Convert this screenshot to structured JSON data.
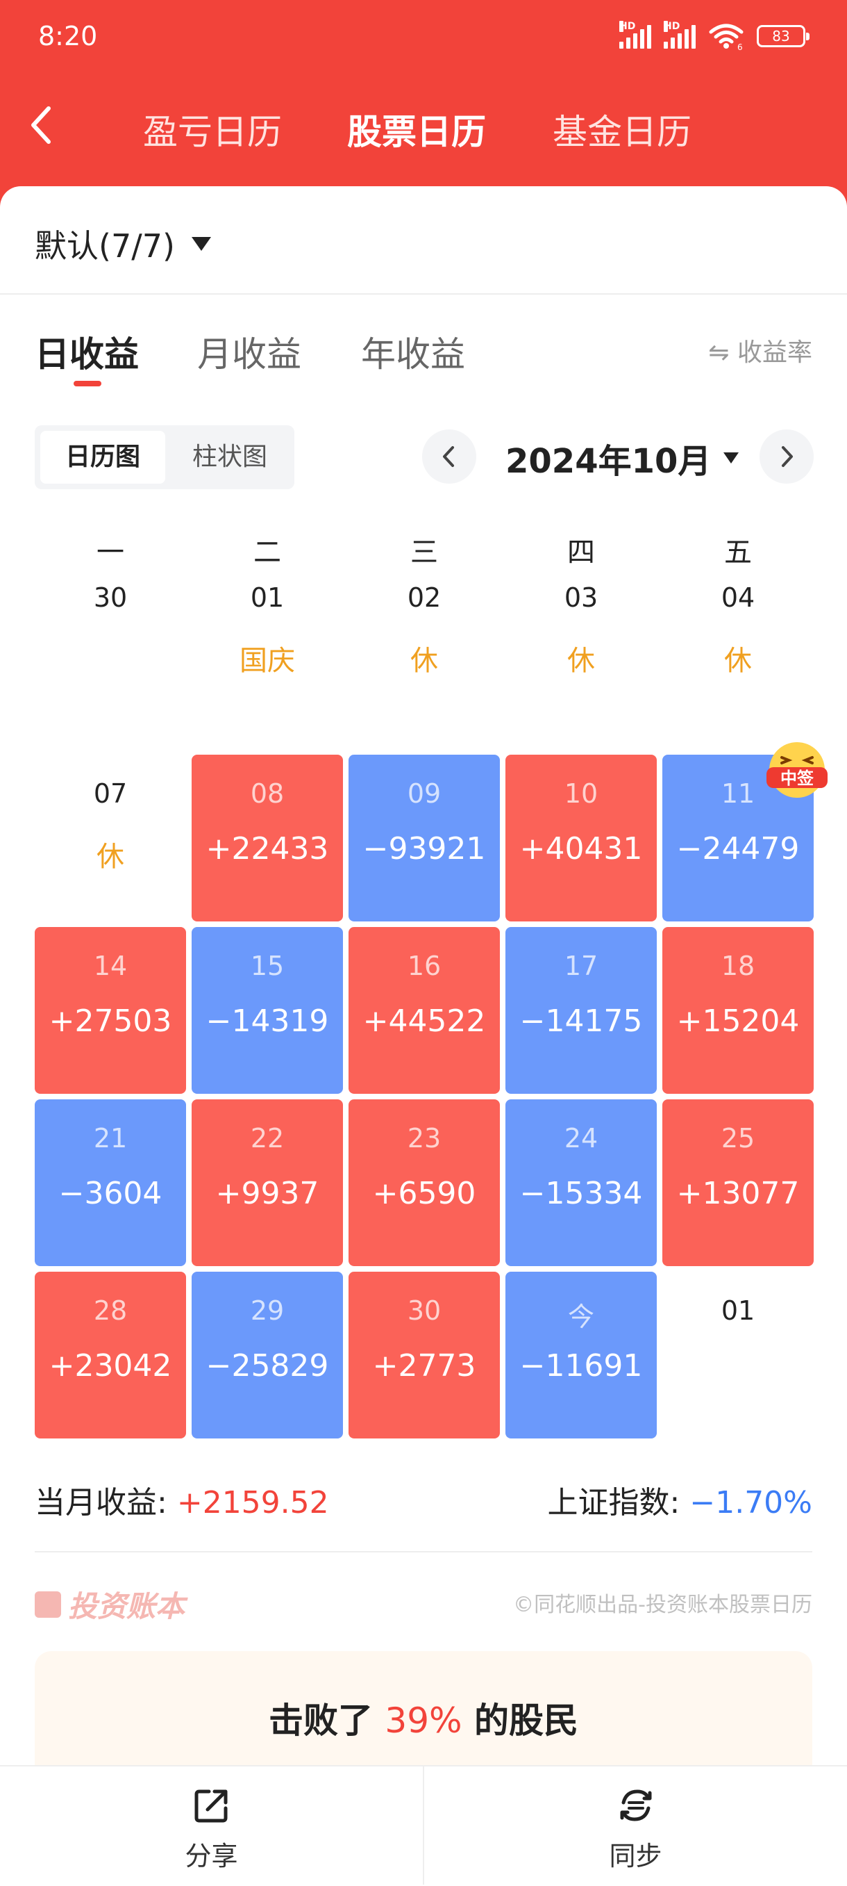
{
  "status_bar": {
    "time": "8:20",
    "hd1": "HD",
    "hd2": "HD",
    "wifi_badge": "6",
    "battery": "83"
  },
  "header": {
    "back_icon": "chevron-left-icon",
    "tabs": [
      {
        "label": "盈亏日历",
        "active": false
      },
      {
        "label": "股票日历",
        "active": true
      },
      {
        "label": "基金日历",
        "active": false
      }
    ]
  },
  "account": {
    "label": "默认(7/7)"
  },
  "period_tabs": [
    {
      "label": "日收益",
      "active": true
    },
    {
      "label": "月收益",
      "active": false
    },
    {
      "label": "年收益",
      "active": false
    }
  ],
  "rate_toggle": {
    "label": "⇋ 收益率"
  },
  "view_switch": {
    "calendar": "日历图",
    "bar": "柱状图"
  },
  "month_label": "2024年10月",
  "weekdays": [
    "一",
    "二",
    "三",
    "四",
    "五"
  ],
  "calendar": {
    "rows": [
      [
        {
          "day": "30",
          "type": "plain"
        },
        {
          "day": "01",
          "type": "holiday",
          "note": "国庆"
        },
        {
          "day": "02",
          "type": "holiday",
          "note": "休"
        },
        {
          "day": "03",
          "type": "holiday",
          "note": "休"
        },
        {
          "day": "04",
          "type": "holiday",
          "note": "休"
        }
      ],
      [
        {
          "day": "07",
          "type": "holiday",
          "note": "休"
        },
        {
          "day": "08",
          "type": "pos",
          "value": "+22433"
        },
        {
          "day": "09",
          "type": "neg",
          "value": "−93921"
        },
        {
          "day": "10",
          "type": "pos",
          "value": "+40431"
        },
        {
          "day": "11",
          "type": "neg",
          "value": "−24479"
        }
      ],
      [
        {
          "day": "14",
          "type": "pos",
          "value": "+27503"
        },
        {
          "day": "15",
          "type": "neg",
          "value": "−14319"
        },
        {
          "day": "16",
          "type": "pos",
          "value": "+44522"
        },
        {
          "day": "17",
          "type": "neg",
          "value": "−14175"
        },
        {
          "day": "18",
          "type": "pos",
          "value": "+15204"
        }
      ],
      [
        {
          "day": "21",
          "type": "neg",
          "value": "−3604"
        },
        {
          "day": "22",
          "type": "pos",
          "value": "+9937"
        },
        {
          "day": "23",
          "type": "pos",
          "value": "+6590"
        },
        {
          "day": "24",
          "type": "neg",
          "value": "−15334"
        },
        {
          "day": "25",
          "type": "pos",
          "value": "+13077"
        }
      ],
      [
        {
          "day": "28",
          "type": "pos",
          "value": "+23042"
        },
        {
          "day": "29",
          "type": "neg",
          "value": "−25829"
        },
        {
          "day": "30",
          "type": "pos",
          "value": "+2773"
        },
        {
          "day": "今",
          "type": "neg",
          "value": "−11691"
        },
        {
          "day": "01",
          "type": "plain"
        }
      ]
    ],
    "badge": {
      "label": "中签",
      "icon": "laughing-face-icon"
    }
  },
  "summary": {
    "month_label": "当月收益:",
    "month_value": "+2159.52",
    "index_label": "上证指数:",
    "index_value": "−1.70%"
  },
  "brand": {
    "name": "投资账本",
    "copyright": "©同花顺出品-投资账本股票日历"
  },
  "beat": {
    "prefix": "击败了",
    "pct": "39%",
    "suffix": "的股民"
  },
  "bottom_bar": {
    "share": "分享",
    "sync": "同步"
  },
  "colors": {
    "header": "#f2433a",
    "positive": "#fb6258",
    "negative": "#6b99fb",
    "holiday": "#f0a020",
    "index_value": "#3b7cf5"
  }
}
